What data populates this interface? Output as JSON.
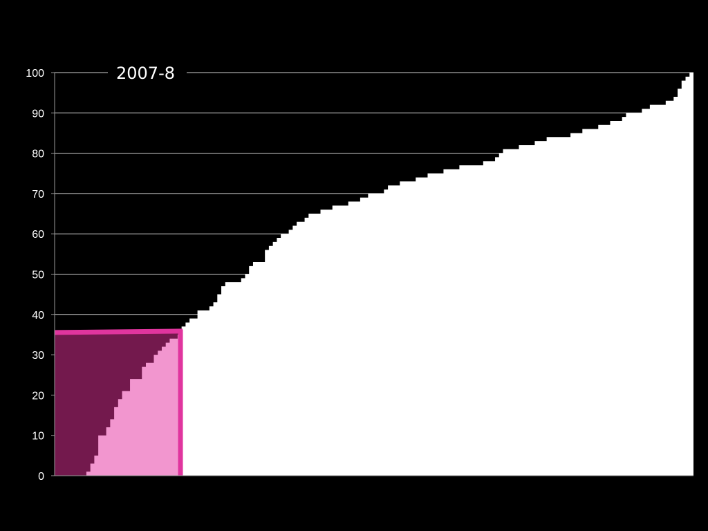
{
  "chart_data": {
    "type": "area",
    "title": "2007-8",
    "xlabel": "",
    "ylabel": "",
    "ylim": [
      0,
      100
    ],
    "yticks": [
      "0",
      "10",
      "20",
      "30",
      "40",
      "50",
      "60",
      "70",
      "80",
      "90",
      "100"
    ],
    "grid": true,
    "series": [
      {
        "values": [
          0,
          0,
          0,
          0,
          0,
          0,
          0,
          0,
          1,
          3,
          5,
          10,
          10,
          12,
          14,
          17,
          19,
          21,
          21,
          24,
          24,
          24,
          27,
          28,
          28,
          30,
          31,
          32,
          33,
          34,
          34,
          35,
          37,
          38,
          39,
          39,
          41,
          41,
          41,
          42,
          43,
          45,
          47,
          48,
          48,
          48,
          48,
          49,
          50,
          52,
          53,
          53,
          53,
          56,
          57,
          58,
          59,
          60,
          60,
          61,
          62,
          63,
          63,
          64,
          65,
          65,
          65,
          66,
          66,
          66,
          67,
          67,
          67,
          67,
          68,
          68,
          68,
          69,
          69,
          70,
          70,
          70,
          70,
          71,
          72,
          72,
          72,
          73,
          73,
          73,
          73,
          74,
          74,
          74,
          75,
          75,
          75,
          75,
          76,
          76,
          76,
          76,
          77,
          77,
          77,
          77,
          77,
          77,
          78,
          78,
          78,
          79,
          80,
          81,
          81,
          81,
          81,
          82,
          82,
          82,
          82,
          83,
          83,
          83,
          84,
          84,
          84,
          84,
          84,
          84,
          85,
          85,
          85,
          86,
          86,
          86,
          86,
          87,
          87,
          87,
          88,
          88,
          88,
          89,
          90,
          90,
          90,
          90,
          91,
          91,
          92,
          92,
          92,
          92,
          93,
          93,
          94,
          96,
          98,
          99,
          100
        ]
      }
    ],
    "highlight": {
      "x_fraction": 0.197,
      "y_value": 35.7,
      "line_color": "#e0359e",
      "below_color": "#f296cf",
      "above_color": "#73194d"
    },
    "colors": {
      "background": "#000000",
      "area": "#ffffff",
      "grid": "#cfcfcf",
      "axis": "#9a9a9a",
      "text": "#ffffff"
    }
  }
}
